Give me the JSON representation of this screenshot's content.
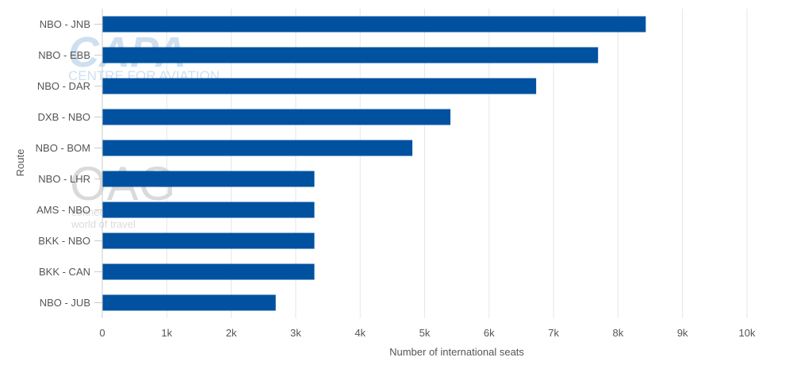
{
  "chart_data": {
    "type": "bar",
    "orientation": "horizontal",
    "categories": [
      "NBO - JNB",
      "NBO - EBB",
      "NBO - DAR",
      "DXB - NBO",
      "NBO - BOM",
      "NBO - LHR",
      "AMS - NBO",
      "BKK - NBO",
      "BKK - CAN",
      "NBO - JUB"
    ],
    "values": [
      8430,
      7690,
      6730,
      5400,
      4810,
      3290,
      3290,
      3290,
      3290,
      2690
    ],
    "xlabel": "Number of international seats",
    "ylabel": "Route",
    "xlim": [
      0,
      10000
    ],
    "xticks": [
      0,
      1000,
      2000,
      3000,
      4000,
      5000,
      6000,
      7000,
      8000,
      9000,
      10000
    ],
    "xtick_labels": [
      "0",
      "1k",
      "2k",
      "3k",
      "4k",
      "5k",
      "6k",
      "7k",
      "8k",
      "9k",
      "10k"
    ],
    "grid": "vertical",
    "legend": "none"
  },
  "colors": {
    "bar": "#0052a0",
    "grid": "#e6e6e6",
    "text": "#555555",
    "axis": "#cccccc",
    "watermark_capa": "#c9dcef",
    "watermark_oag": "#d6d6d6"
  },
  "watermarks": {
    "capa_logo": "CAPA",
    "capa_tagline": "CENTRE FOR AVIATION",
    "oag_logo": "OAG",
    "oag_tagline_1": "connecting the",
    "oag_tagline_2": "world of travel"
  }
}
